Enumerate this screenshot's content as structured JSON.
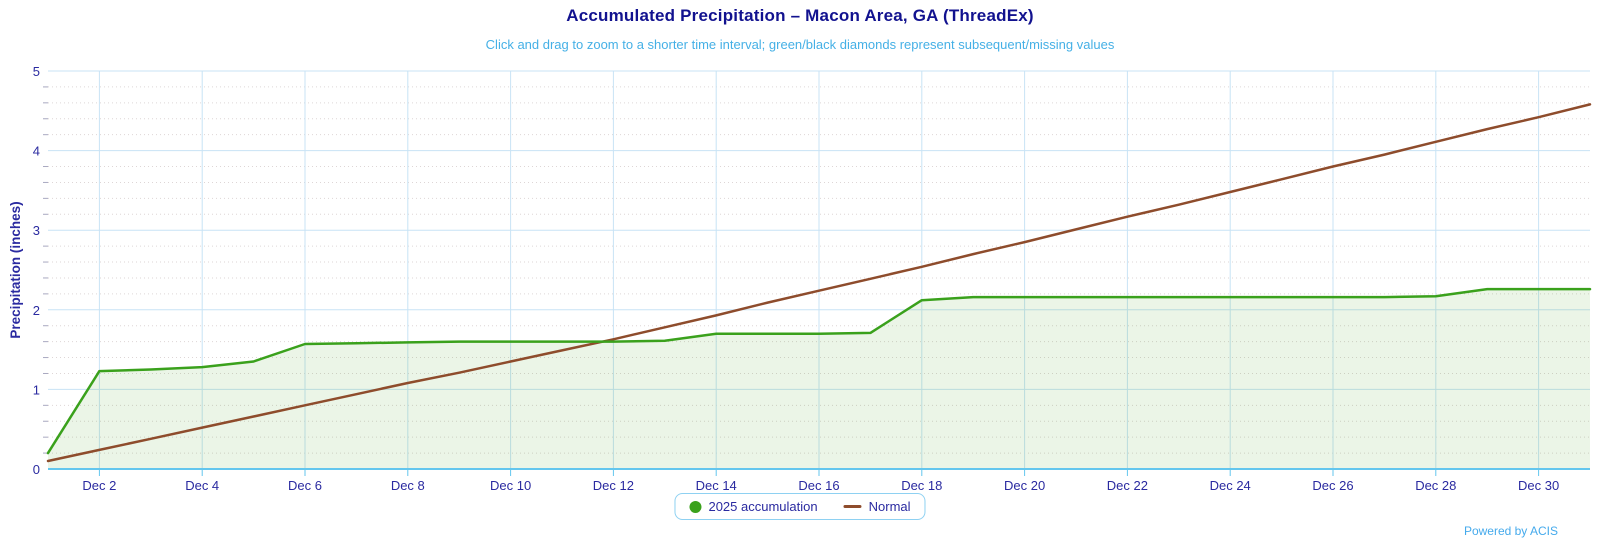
{
  "chart_data": {
    "type": "line",
    "title": "Accumulated Precipitation – Macon Area, GA (ThreadEx)",
    "subtitle": "Click and drag to zoom to a shorter time interval; green/black diamonds represent subsequent/missing values",
    "xlabel": "",
    "ylabel": "Precipitation (inches)",
    "ylim": [
      0,
      5
    ],
    "y_ticks": [
      0,
      1,
      2,
      3,
      4,
      5
    ],
    "y_minor_step": 0.2,
    "xlim_days": [
      1,
      31
    ],
    "x_tick_days": [
      2,
      4,
      6,
      8,
      10,
      12,
      14,
      16,
      18,
      20,
      22,
      24,
      26,
      28,
      30
    ],
    "x_tick_labels": [
      "Dec 2",
      "Dec 4",
      "Dec 6",
      "Dec 8",
      "Dec 10",
      "Dec 12",
      "Dec 14",
      "Dec 16",
      "Dec 18",
      "Dec 20",
      "Dec 22",
      "Dec 24",
      "Dec 26",
      "Dec 28",
      "Dec 30"
    ],
    "grid": true,
    "legend_position": "bottom-center",
    "series": [
      {
        "name": "2025 accumulation",
        "type": "area-line",
        "color": "#3aa11c",
        "marker": "circle",
        "days": [
          1,
          2,
          3,
          4,
          5,
          6,
          7,
          8,
          9,
          10,
          11,
          12,
          13,
          14,
          15,
          16,
          17,
          18,
          19,
          20,
          21,
          22,
          23,
          24,
          25,
          26,
          27,
          28,
          29,
          30,
          31
        ],
        "values": [
          0.2,
          1.23,
          1.25,
          1.28,
          1.35,
          1.57,
          1.58,
          1.59,
          1.6,
          1.6,
          1.6,
          1.6,
          1.61,
          1.7,
          1.7,
          1.7,
          1.71,
          2.12,
          2.16,
          2.16,
          2.16,
          2.16,
          2.16,
          2.16,
          2.16,
          2.16,
          2.16,
          2.17,
          2.26,
          2.26,
          2.26
        ]
      },
      {
        "name": "Normal",
        "type": "line",
        "color": "#8e4c2c",
        "marker": "line",
        "days": [
          1,
          2,
          3,
          4,
          5,
          6,
          7,
          8,
          9,
          10,
          11,
          12,
          13,
          14,
          15,
          16,
          17,
          18,
          19,
          20,
          21,
          22,
          23,
          24,
          25,
          26,
          27,
          28,
          29,
          30,
          31
        ],
        "values": [
          0.1,
          0.24,
          0.38,
          0.52,
          0.66,
          0.8,
          0.94,
          1.08,
          1.21,
          1.35,
          1.49,
          1.63,
          1.78,
          1.93,
          2.09,
          2.24,
          2.39,
          2.54,
          2.7,
          2.85,
          3.01,
          3.17,
          3.32,
          3.48,
          3.64,
          3.8,
          3.95,
          4.11,
          4.27,
          4.42,
          4.58
        ]
      }
    ]
  },
  "footer": {
    "powered_by": "Powered by ACIS"
  },
  "colors": {
    "title": "#12128f",
    "subtitle": "#45b0e6",
    "label": "#2a2aa0",
    "grid_major": "#c8e3f5",
    "grid_minor": "#ded6d6",
    "tick_minor": "#a8a8c0",
    "axis": "#63c6ee",
    "area_fill": "rgba(72,164,36,0.11)",
    "legend_border": "#8ed1f2",
    "powered_by": "#45aaec"
  }
}
